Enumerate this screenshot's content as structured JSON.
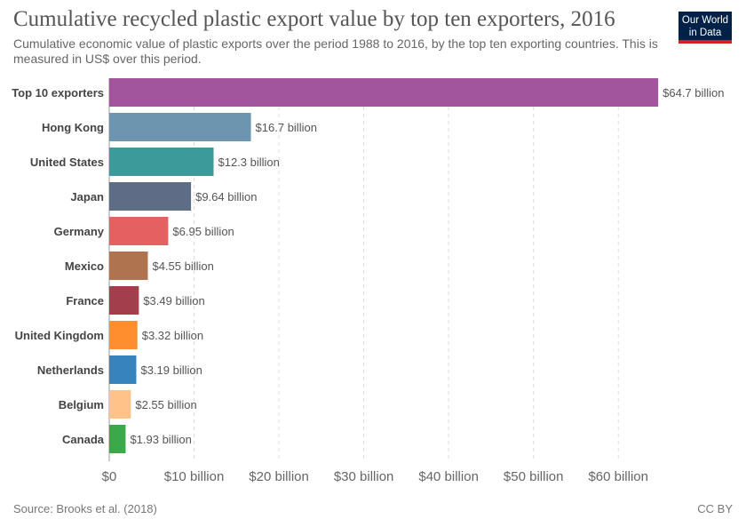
{
  "header": {
    "title": "Cumulative recycled plastic export value by top ten exporters, 2016",
    "subtitle": "Cumulative economic value of plastic exports over the period 1988 to 2016, by the top ten exporting countries. This is measured in US$ over this period."
  },
  "logo": {
    "line1": "Our World",
    "line2": "in Data",
    "bg_color": "#002147",
    "accent_color": "#ce261e"
  },
  "footer": {
    "source": "Source: Brooks et al. (2018)",
    "license": "CC BY"
  },
  "chart_data": {
    "type": "bar",
    "orientation": "horizontal",
    "title": "Cumulative recycled plastic export value by top ten exporters, 2016",
    "categories": [
      "Top 10 exporters",
      "Hong Kong",
      "United States",
      "Japan",
      "Germany",
      "Mexico",
      "France",
      "United Kingdom",
      "Netherlands",
      "Belgium",
      "Canada"
    ],
    "values": [
      64.7,
      16.7,
      12.3,
      9.64,
      6.95,
      4.55,
      3.49,
      3.32,
      3.19,
      2.55,
      1.93
    ],
    "value_labels": [
      "$64.7 billion",
      "$16.7 billion",
      "$12.3 billion",
      "$9.64 billion",
      "$6.95 billion",
      "$4.55 billion",
      "$3.49 billion",
      "$3.32 billion",
      "$3.19 billion",
      "$2.55 billion",
      "$1.93 billion"
    ],
    "colors": [
      "#a2559c",
      "#6d95af",
      "#3c9b9a",
      "#5f6c86",
      "#e56060",
      "#b07350",
      "#a33e4d",
      "#ff8f2e",
      "#3783be",
      "#ffc38a",
      "#3ba849"
    ],
    "xlim": [
      0,
      65
    ],
    "x_ticks": [
      0,
      10,
      20,
      30,
      40,
      50,
      60
    ],
    "x_tick_labels": [
      "$0",
      "$10 billion",
      "$20 billion",
      "$30 billion",
      "$40 billion",
      "$50 billion",
      "$60 billion"
    ],
    "grid": true,
    "xlabel": "",
    "ylabel": ""
  }
}
